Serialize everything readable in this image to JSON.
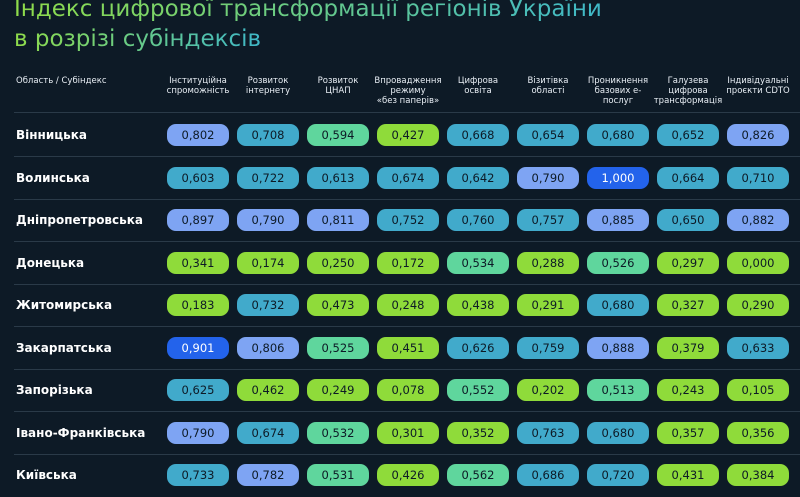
{
  "header": {
    "title": [
      "Індекс цифрової трансформації регіонів України",
      "в розрізі субіндексів"
    ]
  },
  "table": {
    "columns": [
      "Область / Субіндекс",
      "Інституційна\nспроможність",
      "Розвиток\nінтернету",
      "Розвиток\nЦНАП",
      "Впровадження\nрежиму\n«без паперів»",
      "Цифрова\nосвіта",
      "Візитівка\nобласті",
      "Проникнення\nбазових е-\nпослуг",
      "Галузева\nцифрова\nтрансформація",
      "Індивідуальні\nпроєкти CDTO"
    ],
    "rows": [
      [
        "Вінницька",
        "0,802",
        "0,708",
        "0,594",
        "0,427",
        "0,668",
        "0,654",
        "0,680",
        "0,652",
        "0,826"
      ],
      [
        "Волинська",
        "0,603",
        "0,722",
        "0,613",
        "0,674",
        "0,642",
        "0,790",
        "1,000",
        "0,664",
        "0,710"
      ],
      [
        "Дніпропетровська",
        "0,897",
        "0,790",
        "0,811",
        "0,752",
        "0,760",
        "0,757",
        "0,885",
        "0,650",
        "0,882"
      ],
      [
        "Донецька",
        "0,341",
        "0,174",
        "0,250",
        "0,172",
        "0,534",
        "0,288",
        "0,526",
        "0,297",
        "0,000"
      ],
      [
        "Житомирська",
        "0,183",
        "0,732",
        "0,473",
        "0,248",
        "0,438",
        "0,291",
        "0,680",
        "0,327",
        "0,290"
      ],
      [
        "Закарпатська",
        "0,901",
        "0,806",
        "0,525",
        "0,451",
        "0,626",
        "0,759",
        "0,888",
        "0,379",
        "0,633"
      ],
      [
        "Запорізька",
        "0,625",
        "0,462",
        "0,249",
        "0,078",
        "0,552",
        "0,202",
        "0,513",
        "0,243",
        "0,105"
      ],
      [
        "Івано-Франківська",
        "0,790",
        "0,674",
        "0,532",
        "0,301",
        "0,352",
        "0,763",
        "0,680",
        "0,357",
        "0,356"
      ],
      [
        "Київська",
        "0,733",
        "0,782",
        "0,531",
        "0,426",
        "0,562",
        "0,686",
        "0,720",
        "0,431",
        "0,384"
      ]
    ]
  }
}
